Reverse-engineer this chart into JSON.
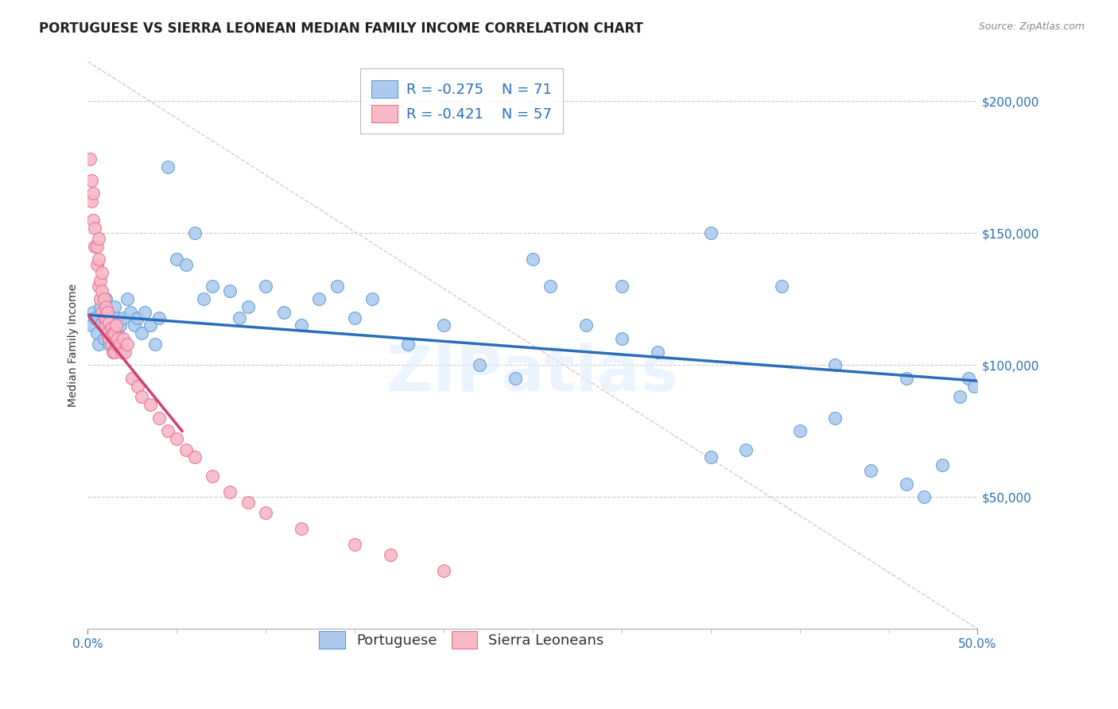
{
  "title": "PORTUGUESE VS SIERRA LEONEAN MEDIAN FAMILY INCOME CORRELATION CHART",
  "source": "Source: ZipAtlas.com",
  "ylabel": "Median Family Income",
  "y_ticks": [
    0,
    50000,
    100000,
    150000,
    200000
  ],
  "y_tick_labels": [
    "",
    "$50,000",
    "$100,000",
    "$150,000",
    "$200,000"
  ],
  "xlim": [
    0.0,
    0.5
  ],
  "ylim": [
    0,
    215000
  ],
  "watermark": "ZIPatlas",
  "legend_r1": "-0.275",
  "legend_n1": "71",
  "legend_r2": "-0.421",
  "legend_n2": "57",
  "portuguese_color": "#aecbee",
  "sierraleonean_color": "#f7b8c8",
  "portuguese_edge_color": "#5b9bd5",
  "sierraleonean_edge_color": "#e87090",
  "portuguese_line_color": "#2a6eba",
  "sierraleonean_line_color": "#d04070",
  "background_color": "#ffffff",
  "grid_color": "#cccccc",
  "title_fontsize": 12,
  "source_fontsize": 9,
  "axis_label_fontsize": 10,
  "tick_label_fontsize": 11,
  "legend_fontsize": 13,
  "portuguese_scatter_x": [
    0.002,
    0.003,
    0.004,
    0.005,
    0.006,
    0.007,
    0.008,
    0.009,
    0.01,
    0.01,
    0.011,
    0.012,
    0.013,
    0.014,
    0.015,
    0.015,
    0.016,
    0.017,
    0.018,
    0.019,
    0.02,
    0.022,
    0.024,
    0.026,
    0.028,
    0.03,
    0.032,
    0.035,
    0.038,
    0.04,
    0.045,
    0.05,
    0.055,
    0.06,
    0.065,
    0.07,
    0.08,
    0.085,
    0.09,
    0.1,
    0.11,
    0.12,
    0.13,
    0.14,
    0.15,
    0.16,
    0.18,
    0.2,
    0.22,
    0.24,
    0.26,
    0.28,
    0.3,
    0.32,
    0.35,
    0.37,
    0.4,
    0.42,
    0.44,
    0.46,
    0.47,
    0.48,
    0.49,
    0.495,
    0.498,
    0.25,
    0.3,
    0.35,
    0.39,
    0.42,
    0.46
  ],
  "portuguese_scatter_y": [
    115000,
    120000,
    118000,
    112000,
    108000,
    122000,
    116000,
    110000,
    118000,
    125000,
    113000,
    108000,
    115000,
    110000,
    122000,
    116000,
    118000,
    112000,
    115000,
    108000,
    118000,
    125000,
    120000,
    115000,
    118000,
    112000,
    120000,
    115000,
    108000,
    118000,
    175000,
    140000,
    138000,
    150000,
    125000,
    130000,
    128000,
    118000,
    122000,
    130000,
    120000,
    115000,
    125000,
    130000,
    118000,
    125000,
    108000,
    115000,
    100000,
    95000,
    130000,
    115000,
    110000,
    105000,
    65000,
    68000,
    75000,
    80000,
    60000,
    55000,
    50000,
    62000,
    88000,
    95000,
    92000,
    140000,
    130000,
    150000,
    130000,
    100000,
    95000
  ],
  "sierraleonean_scatter_x": [
    0.001,
    0.002,
    0.002,
    0.003,
    0.003,
    0.004,
    0.004,
    0.005,
    0.005,
    0.006,
    0.006,
    0.006,
    0.007,
    0.007,
    0.008,
    0.008,
    0.008,
    0.009,
    0.009,
    0.01,
    0.01,
    0.01,
    0.011,
    0.011,
    0.012,
    0.012,
    0.013,
    0.013,
    0.014,
    0.014,
    0.015,
    0.015,
    0.016,
    0.016,
    0.017,
    0.018,
    0.019,
    0.02,
    0.021,
    0.022,
    0.025,
    0.028,
    0.03,
    0.035,
    0.04,
    0.045,
    0.05,
    0.055,
    0.06,
    0.07,
    0.08,
    0.09,
    0.1,
    0.12,
    0.15,
    0.17,
    0.2
  ],
  "sierraleonean_scatter_y": [
    178000,
    162000,
    170000,
    155000,
    165000,
    145000,
    152000,
    138000,
    145000,
    130000,
    140000,
    148000,
    125000,
    132000,
    120000,
    128000,
    135000,
    118000,
    125000,
    115000,
    122000,
    118000,
    112000,
    120000,
    110000,
    116000,
    108000,
    114000,
    105000,
    112000,
    105000,
    112000,
    108000,
    115000,
    110000,
    108000,
    105000,
    110000,
    105000,
    108000,
    95000,
    92000,
    88000,
    85000,
    80000,
    75000,
    72000,
    68000,
    65000,
    58000,
    52000,
    48000,
    44000,
    38000,
    32000,
    28000,
    22000
  ],
  "portuguese_trend_x": [
    0.0,
    0.5
  ],
  "portuguese_trend_y": [
    119000,
    94000
  ],
  "sierraleonean_trend_x": [
    0.0,
    0.053
  ],
  "sierraleonean_trend_y": [
    119000,
    75000
  ],
  "diag_line_x": [
    0.0,
    0.5
  ],
  "diag_line_y": [
    215000,
    0
  ],
  "diag_line_color": "#e8c0cc",
  "diag_line_style": "--"
}
